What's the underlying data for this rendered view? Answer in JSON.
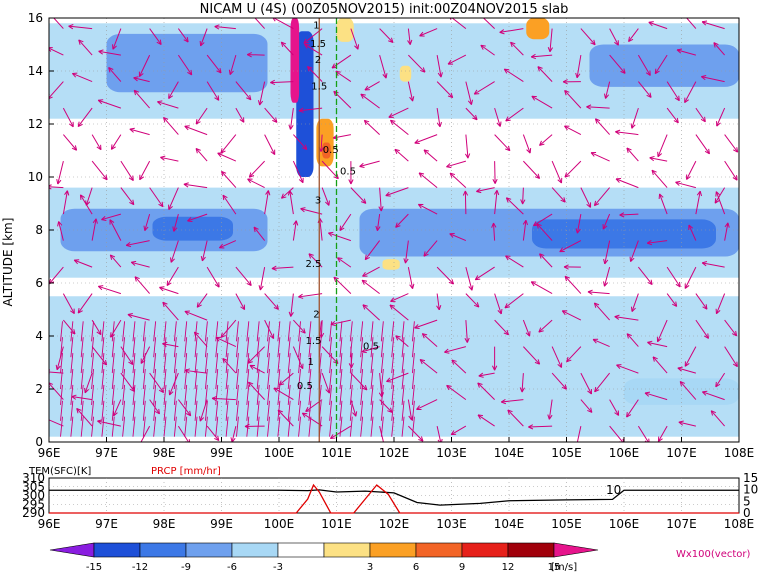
{
  "chart_data": [
    {
      "type": "heatmap",
      "title": "NICAM U (4S) (00Z05NOV2015) init:00Z04NOV2015 slab",
      "ylabel": "ALTITUDE [km]",
      "xlabel": "",
      "xlim": [
        96,
        108
      ],
      "ylim": [
        0,
        16
      ],
      "x_ticks": [
        "96E",
        "97E",
        "98E",
        "99E",
        "100E",
        "101E",
        "102E",
        "103E",
        "104E",
        "105E",
        "106E",
        "107E",
        "108E"
      ],
      "y_ticks": [
        "0",
        "2",
        "4",
        "6",
        "8",
        "10",
        "12",
        "14",
        "16"
      ],
      "grid": "dotted",
      "fields": {
        "shading": "zonal wind U",
        "vectors": "Wx100(vector)"
      },
      "contour_labels": [
        "1",
        "1.5",
        "2",
        "1.5",
        "3",
        "2.5",
        "2",
        "1.5",
        "1",
        "0.5",
        "0.5",
        "0.5",
        "0.5"
      ],
      "regions": [
        {
          "kind": "negative",
          "level": -6,
          "x": [
            96.2,
            99.8
          ],
          "y": [
            7.2,
            8.8
          ]
        },
        {
          "kind": "negative",
          "level": -9,
          "x": [
            97.8,
            99.2
          ],
          "y": [
            7.6,
            8.5
          ]
        },
        {
          "kind": "negative",
          "level": -6,
          "x": [
            101.4,
            108
          ],
          "y": [
            7.0,
            8.8
          ]
        },
        {
          "kind": "negative",
          "level": -9,
          "x": [
            104.4,
            107.6
          ],
          "y": [
            7.3,
            8.4
          ]
        },
        {
          "kind": "negative",
          "level": -6,
          "x": [
            97.0,
            99.8
          ],
          "y": [
            13.2,
            15.4
          ]
        },
        {
          "kind": "negative",
          "level": -12,
          "x": [
            100.3,
            100.6
          ],
          "y": [
            10.0,
            15.5
          ]
        },
        {
          "kind": "negative",
          "level": -3,
          "x": [
            106.0,
            108
          ],
          "y": [
            1.4,
            2.4
          ]
        },
        {
          "kind": "negative",
          "level": -6,
          "x": [
            105.4,
            108
          ],
          "y": [
            13.4,
            15.0
          ]
        },
        {
          "kind": "positive",
          "level": 6,
          "x": [
            100.65,
            100.95
          ],
          "y": [
            10.4,
            12.2
          ]
        },
        {
          "kind": "positive",
          "level": 9,
          "x": [
            100.75,
            100.9
          ],
          "y": [
            10.7,
            11.3
          ]
        },
        {
          "kind": "positive",
          "level": 6,
          "x": [
            104.3,
            104.7
          ],
          "y": [
            15.2,
            16
          ]
        },
        {
          "kind": "positive",
          "level": 3,
          "x": [
            101.8,
            102.1
          ],
          "y": [
            6.5,
            6.9
          ]
        },
        {
          "kind": "positive",
          "level": 3,
          "x": [
            101.0,
            101.3
          ],
          "y": [
            15.1,
            16
          ]
        },
        {
          "kind": "positive",
          "level": 3,
          "x": [
            102.1,
            102.3
          ],
          "y": [
            13.6,
            14.2
          ]
        },
        {
          "kind": "positive",
          "level": 15,
          "x": [
            100.2,
            100.35
          ],
          "y": [
            12.8,
            16
          ]
        }
      ],
      "vertical_lines": [
        {
          "x": 101.0,
          "color": "#16a016",
          "style": "dashed"
        },
        {
          "x": 100.7,
          "color": "#a0522d",
          "style": "solid"
        }
      ]
    },
    {
      "type": "line",
      "xlim": [
        96,
        108
      ],
      "ylim": [
        290,
        310
      ],
      "y_ticks": [
        "290",
        "295",
        "300",
        "305",
        "310"
      ],
      "y2_ticks": [
        "0",
        "5",
        "10",
        "15"
      ],
      "y2lim": [
        0,
        15
      ],
      "series": [
        {
          "name": "TEM(SFC)[K]",
          "color": "#000000",
          "x": [
            96,
            100,
            100.5,
            100.7,
            101.0,
            101.5,
            102.0,
            102.4,
            102.8,
            103.5,
            104.0,
            105.0,
            105.8,
            106.0,
            107.0,
            108
          ],
          "y": [
            303.0,
            303.0,
            302.8,
            303.2,
            302.0,
            302.5,
            301.5,
            296.0,
            294.5,
            295.5,
            297.0,
            297.5,
            297.8,
            303.0,
            303.0,
            303.0
          ]
        },
        {
          "name": "PRCP [mm/hr]",
          "color": "#e00000",
          "axis": "right",
          "x": [
            96,
            100.3,
            100.5,
            100.6,
            100.7,
            100.9,
            101.3,
            101.5,
            101.7,
            101.9,
            102.1,
            108
          ],
          "y": [
            0,
            0,
            6,
            12,
            9,
            0,
            0,
            6,
            12,
            8,
            0,
            0
          ]
        }
      ],
      "annotation": "10"
    }
  ],
  "colorbar": {
    "labels": [
      "-15",
      "-12",
      "-9",
      "-6",
      "-3",
      "3",
      "6",
      "9",
      "12",
      "15"
    ],
    "unit": "[m/s]",
    "colors": [
      "#8a1de0",
      "#1e50d8",
      "#3c78e6",
      "#6ea0ee",
      "#a8d8f5",
      "#ffffff",
      "#fce184",
      "#fba024",
      "#f26426",
      "#e6201a",
      "#a0000a",
      "#e6148c"
    ]
  },
  "vector_label": "Wx100(vector)",
  "palette": {
    "vector": "#d0007a",
    "prcp": "#e00000",
    "green_line": "#16a016"
  }
}
